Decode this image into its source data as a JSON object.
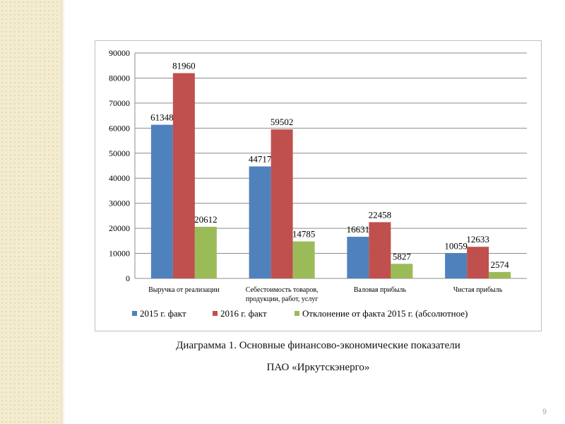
{
  "caption": {
    "line1": "Диаграмма 1. Основные финансово-экономические показатели",
    "line2": "ПАО «Иркутскэнерго»"
  },
  "page_number": "9",
  "chart_data": {
    "type": "bar",
    "categories": [
      [
        "Выручка от реализации"
      ],
      [
        "Себестоимость товаров,",
        "продукции, работ, услуг"
      ],
      [
        "Валовая прибыль"
      ],
      [
        "Чистая прибыль"
      ]
    ],
    "series": [
      {
        "name": "2015 г. факт",
        "color": "#4f81bd",
        "values": [
          61348,
          44717,
          16631,
          10059
        ]
      },
      {
        "name": "2016 г. факт",
        "color": "#c0504d",
        "values": [
          81960,
          59502,
          22458,
          12633
        ]
      },
      {
        "name": "Отклонение от факта 2015 г. (абсолютное)",
        "color": "#9bbb59",
        "values": [
          20612,
          14785,
          5827,
          2574
        ]
      }
    ],
    "ylim": [
      0,
      90000
    ],
    "yticks": [
      0,
      10000,
      20000,
      30000,
      40000,
      50000,
      60000,
      70000,
      80000,
      90000
    ],
    "grid": true,
    "legend": "bottom"
  }
}
